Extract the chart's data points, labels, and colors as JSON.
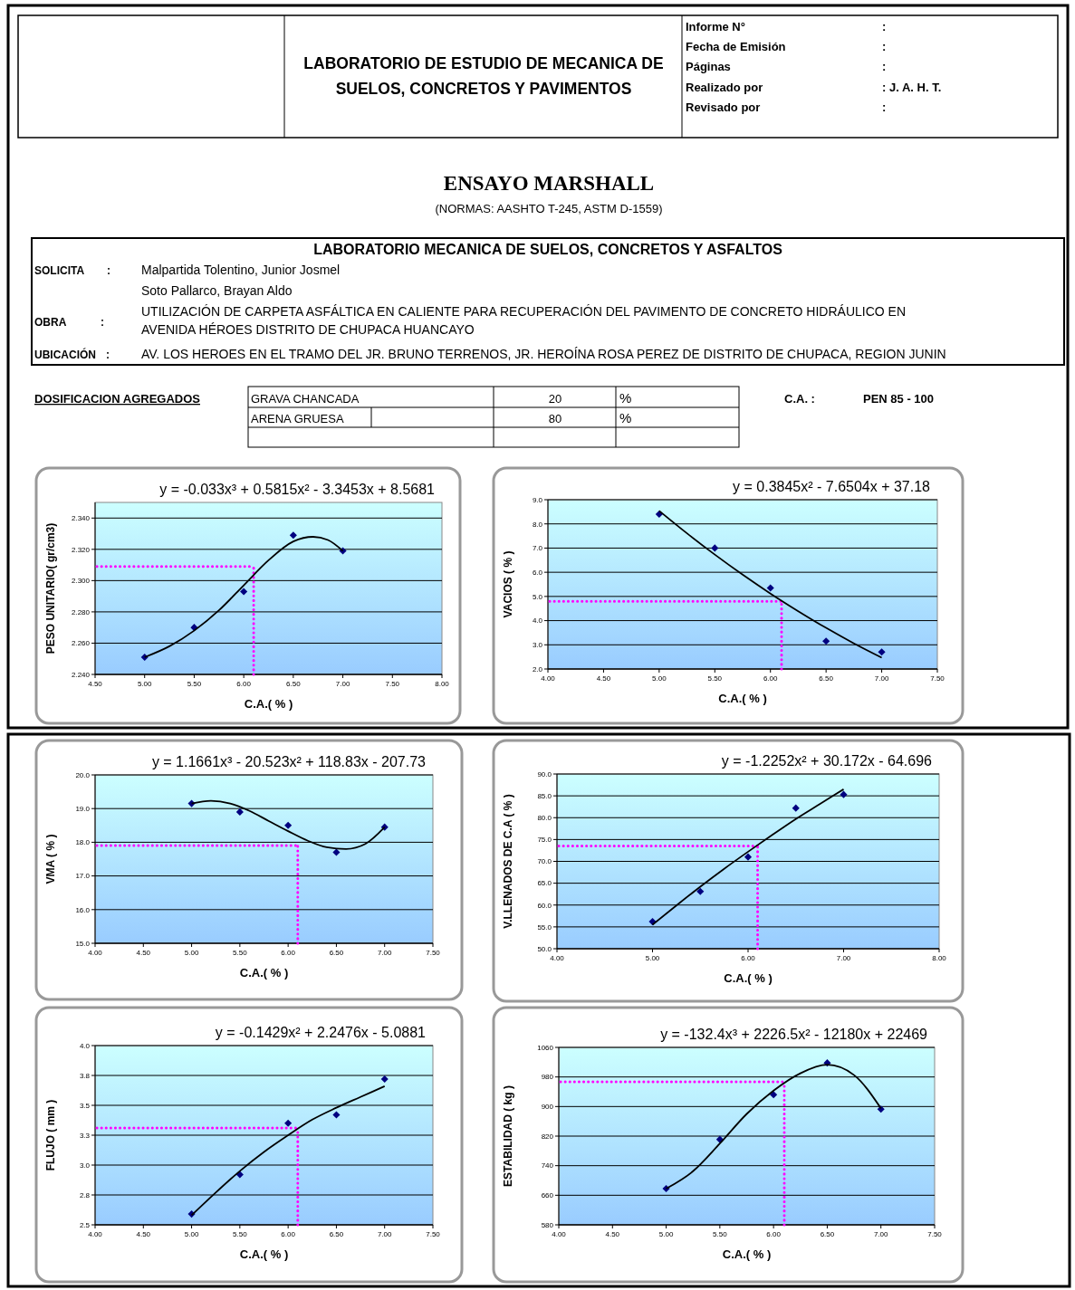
{
  "chart_data": [
    {
      "type": "other",
      "title": "ENSAYO MARSHALL",
      "subtitle": "(NORMAS: AASHTO T-245, ASTM D-1559)",
      "annotations": [
        "LABORATORIO DE ESTUDIO DE MECANICA DE",
        "SUELOS, CONCRETOS Y PAVIMENTOS",
        "Informe N°",
        "Fecha de Emisión",
        "Páginas",
        "Realizado por",
        "Revisado por",
        ":",
        ":",
        ":",
        ": J. A. H. T.",
        ":",
        "LABORATORIO MECANICA DE SUELOS, CONCRETOS Y ASFALTOS",
        "SOLICITA",
        ":",
        "Malpartida Tolentino, Junior Josmel",
        "Soto Pallarco, Brayan Aldo",
        "OBRA",
        ":",
        "UTILIZACIÓN DE CARPETA ASFÁLTICA EN CALIENTE PARA RECUPERACIÓN DEL PAVIMENTO DE CONCRETO HIDRÁULICO EN",
        "AVENIDA HÉROES DISTRITO DE CHUPACA HUANCAYO",
        "UBICACIÓN",
        ":",
        "AV. LOS HEROES EN EL TRAMO DEL JR. BRUNO TERRENOS, JR. HEROÍNA ROSA PEREZ DE DISTRITO DE CHUPACA, REGION JUNIN",
        "DOSIFICACION AGREGADOS",
        "GRAVA CHANCADA",
        "20",
        "%",
        "ARENA GRUESA",
        "80",
        "%",
        "C.A. :",
        "PEN 85 - 100"
      ]
    },
    {
      "type": "scatter",
      "title": "y = -0.033x³ + 0.5815x² - 3.3453x + 8.5681",
      "xlabel": "C.A.( % )",
      "ylabel": "PESO UNITARIO( gr/cm3)",
      "x": [
        5,
        5.5,
        6,
        6.5,
        7
      ],
      "marker": "diamond",
      "grid": "y",
      "xlim": [
        4.5,
        8
      ],
      "xticks": [
        {
          "value": 4.5,
          "label": "4.50"
        },
        {
          "value": 5,
          "label": "5.00"
        },
        {
          "value": 5.5,
          "label": "5.50"
        },
        {
          "value": 6,
          "label": "6.00"
        },
        {
          "value": 6.5,
          "label": "6.50"
        },
        {
          "value": 7,
          "label": "7.00"
        },
        {
          "value": 7.5,
          "label": "7.50"
        },
        {
          "value": 8,
          "label": "8.00"
        }
      ],
      "ylim": [
        2.24,
        2.35
      ],
      "yticks": [
        {
          "value": 2.24,
          "label": "2.240"
        },
        {
          "value": 2.26,
          "label": "2.260"
        },
        {
          "value": 2.28,
          "label": "2.280"
        },
        {
          "value": 2.3,
          "label": "2.300"
        },
        {
          "value": 2.32,
          "label": "2.320"
        },
        {
          "value": 2.34,
          "label": "2.340"
        }
      ],
      "series": [
        {
          "type": "scatter",
          "color": "#000080",
          "values": [
            2.251,
            2.27,
            2.293,
            2.329,
            2.319
          ]
        },
        {
          "type": "line",
          "color": "#000000",
          "x": [
            5,
            5.25,
            5.5,
            5.75,
            6,
            6.25,
            6.5,
            6.7,
            6.85,
            7
          ],
          "marker": "none",
          "values": [
            2.251,
            2.258,
            2.268,
            2.281,
            2.297,
            2.313,
            2.325,
            2.328,
            2.326,
            2.319
          ]
        }
      ],
      "ref_lines": [
        {
          "axis": "x",
          "value": 6.1,
          "color": "#ff00ff",
          "line_style": "dotted"
        },
        {
          "axis": "y",
          "value": 2.309,
          "color": "#ff00ff",
          "line_style": "dotted"
        }
      ]
    },
    {
      "type": "scatter",
      "title": "y = 0.3845x² - 7.6504x + 37.18",
      "xlabel": "C.A.( % )",
      "ylabel": "VACIOS ( % )",
      "x": [
        5,
        5.5,
        6,
        6.5,
        7
      ],
      "marker": "diamond",
      "grid": "y",
      "xlim": [
        4,
        7.5
      ],
      "xticks": [
        {
          "value": 4,
          "label": "4.00"
        },
        {
          "value": 4.5,
          "label": "4.50"
        },
        {
          "value": 5,
          "label": "5.00"
        },
        {
          "value": 5.5,
          "label": "5.50"
        },
        {
          "value": 6,
          "label": "6.00"
        },
        {
          "value": 6.5,
          "label": "6.50"
        },
        {
          "value": 7,
          "label": "7.00"
        },
        {
          "value": 7.5,
          "label": "7.50"
        }
      ],
      "ylim": [
        2,
        9
      ],
      "yticks": [
        {
          "value": 2,
          "label": "2.0"
        },
        {
          "value": 3,
          "label": "3.0"
        },
        {
          "value": 4,
          "label": "4.0"
        },
        {
          "value": 5,
          "label": "5.0"
        },
        {
          "value": 6,
          "label": "6.0"
        },
        {
          "value": 7,
          "label": "7.0"
        },
        {
          "value": 8,
          "label": "8.0"
        },
        {
          "value": 9,
          "label": "9.0"
        }
      ],
      "series": [
        {
          "type": "scatter",
          "color": "#000080",
          "values": [
            8.4,
            7.0,
            5.35,
            3.15,
            2.7
          ]
        },
        {
          "type": "line",
          "color": "#000000",
          "x": [
            5,
            5.25,
            5.5,
            5.75,
            6,
            6.25,
            6.5,
            6.75,
            7
          ],
          "marker": "none",
          "values": [
            8.54,
            7.61,
            6.73,
            5.9,
            5.12,
            4.39,
            3.7,
            3.06,
            2.47
          ]
        }
      ],
      "ref_lines": [
        {
          "axis": "x",
          "value": 6.1,
          "color": "#ff00ff",
          "line_style": "dotted"
        },
        {
          "axis": "y",
          "value": 4.8,
          "color": "#ff00ff",
          "line_style": "dotted"
        }
      ]
    },
    {
      "type": "scatter",
      "title": "y = 1.1661x³ - 20.523x² + 118.83x - 207.73",
      "xlabel": "C.A.( % )",
      "ylabel": "VMA ( % )",
      "x": [
        5,
        5.5,
        6,
        6.5,
        7
      ],
      "marker": "diamond",
      "grid": "y",
      "xlim": [
        4,
        7.5
      ],
      "xticks": [
        {
          "value": 4,
          "label": "4.00"
        },
        {
          "value": 4.5,
          "label": "4.50"
        },
        {
          "value": 5,
          "label": "5.00"
        },
        {
          "value": 5.5,
          "label": "5.50"
        },
        {
          "value": 6,
          "label": "6.00"
        },
        {
          "value": 6.5,
          "label": "6.50"
        },
        {
          "value": 7,
          "label": "7.00"
        },
        {
          "value": 7.5,
          "label": "7.50"
        }
      ],
      "ylim": [
        15,
        20
      ],
      "yticks": [
        {
          "value": 15,
          "label": "15.0"
        },
        {
          "value": 16,
          "label": "16.0"
        },
        {
          "value": 17,
          "label": "17.0"
        },
        {
          "value": 18,
          "label": "18.0"
        },
        {
          "value": 19,
          "label": "19.0"
        },
        {
          "value": 20,
          "label": "20.0"
        }
      ],
      "series": [
        {
          "type": "scatter",
          "color": "#000080",
          "values": [
            19.15,
            18.9,
            18.5,
            17.7,
            18.45
          ]
        },
        {
          "type": "line",
          "color": "#000000",
          "x": [
            5,
            5.2,
            5.4,
            5.6,
            5.8,
            6,
            6.2,
            6.4,
            6.6,
            6.8,
            7
          ],
          "marker": "none",
          "values": [
            19.15,
            19.23,
            19.15,
            18.93,
            18.63,
            18.33,
            18.05,
            17.85,
            17.8,
            17.95,
            18.45
          ]
        }
      ],
      "ref_lines": [
        {
          "axis": "x",
          "value": 6.1,
          "color": "#ff00ff",
          "line_style": "dotted"
        },
        {
          "axis": "y",
          "value": 17.9,
          "color": "#ff00ff",
          "line_style": "dotted"
        }
      ]
    },
    {
      "type": "scatter",
      "title": "y = -1.2252x² + 30.172x - 64.696",
      "xlabel": "C.A.( % )",
      "ylabel": "V.LLENADOS DE C.A ( % )",
      "x": [
        5,
        5.5,
        6,
        6.5,
        7
      ],
      "marker": "diamond",
      "grid": "y",
      "xlim": [
        4,
        8
      ],
      "xticks": [
        {
          "value": 4,
          "label": "4.00"
        },
        {
          "value": 5,
          "label": "5.00"
        },
        {
          "value": 6,
          "label": "6.00"
        },
        {
          "value": 7,
          "label": "7.00"
        },
        {
          "value": 8,
          "label": "8.00"
        }
      ],
      "ylim": [
        50,
        90
      ],
      "yticks": [
        {
          "value": 50,
          "label": "50.0"
        },
        {
          "value": 55,
          "label": "55.0"
        },
        {
          "value": 60,
          "label": "60.0"
        },
        {
          "value": 65,
          "label": "65.0"
        },
        {
          "value": 70,
          "label": "70.0"
        },
        {
          "value": 75,
          "label": "75.0"
        },
        {
          "value": 80,
          "label": "80.0"
        },
        {
          "value": 85,
          "label": "85.0"
        },
        {
          "value": 90,
          "label": "90.0"
        }
      ],
      "series": [
        {
          "type": "scatter",
          "color": "#000080",
          "values": [
            56.2,
            63.1,
            71,
            82.2,
            85.3
          ]
        },
        {
          "type": "line",
          "color": "#000000",
          "x": [
            5,
            5.25,
            5.5,
            5.75,
            6,
            6.25,
            6.5,
            6.75,
            7
          ],
          "marker": "none",
          "values": [
            55.5,
            59.9,
            64.2,
            68.3,
            72.2,
            76.0,
            79.7,
            83.1,
            86.5
          ]
        }
      ],
      "ref_lines": [
        {
          "axis": "x",
          "value": 6.1,
          "color": "#ff00ff",
          "line_style": "dotted"
        },
        {
          "axis": "y",
          "value": 73.5,
          "color": "#ff00ff",
          "line_style": "dotted"
        }
      ]
    },
    {
      "type": "scatter",
      "title": "y = -0.1429x² + 2.2476x - 5.0881",
      "xlabel": "C.A.( % )",
      "ylabel": "FLUJO ( mm )",
      "x": [
        5,
        5.5,
        6,
        6.5,
        7
      ],
      "marker": "diamond",
      "grid": "y",
      "xlim": [
        4,
        7.5
      ],
      "xticks": [
        {
          "value": 4,
          "label": "4.00"
        },
        {
          "value": 4.5,
          "label": "4.50"
        },
        {
          "value": 5,
          "label": "5.00"
        },
        {
          "value": 5.5,
          "label": "5.50"
        },
        {
          "value": 6,
          "label": "6.00"
        },
        {
          "value": 6.5,
          "label": "6.50"
        },
        {
          "value": 7,
          "label": "7.00"
        },
        {
          "value": 7.5,
          "label": "7.50"
        }
      ],
      "ylim": [
        2.5,
        4
      ],
      "yticks": [
        {
          "value": 2.5,
          "label": "2.5"
        },
        {
          "value": 2.75,
          "label": "2.8"
        },
        {
          "value": 3,
          "label": "3.0"
        },
        {
          "value": 3.25,
          "label": "3.3"
        },
        {
          "value": 3.5,
          "label": "3.5"
        },
        {
          "value": 3.75,
          "label": "3.8"
        },
        {
          "value": 4,
          "label": "4.0"
        }
      ],
      "series": [
        {
          "type": "scatter",
          "color": "#000080",
          "values": [
            2.59,
            2.92,
            3.35,
            3.42,
            3.72
          ]
        },
        {
          "type": "line",
          "color": "#000000",
          "x": [
            5,
            5.25,
            5.5,
            5.75,
            6,
            6.25,
            6.5,
            6.75,
            7
          ],
          "marker": "none",
          "values": [
            2.58,
            2.77,
            2.95,
            3.11,
            3.25,
            3.38,
            3.48,
            3.57,
            3.66
          ]
        }
      ],
      "ref_lines": [
        {
          "axis": "x",
          "value": 6.1,
          "color": "#ff00ff",
          "line_style": "dotted"
        },
        {
          "axis": "y",
          "value": 3.31,
          "color": "#ff00ff",
          "line_style": "dotted"
        }
      ]
    },
    {
      "type": "scatter",
      "title": "y = -132.4x³ + 2226.5x² - 12180x + 22469",
      "xlabel": "C.A.( % )",
      "ylabel": "ESTABILIDAD ( kg )",
      "x": [
        5,
        5.5,
        6,
        6.5,
        7
      ],
      "marker": "diamond",
      "grid": "y",
      "xlim": [
        4,
        7.5
      ],
      "xticks": [
        {
          "value": 4,
          "label": "4.00"
        },
        {
          "value": 4.5,
          "label": "4.50"
        },
        {
          "value": 5,
          "label": "5.00"
        },
        {
          "value": 5.5,
          "label": "5.50"
        },
        {
          "value": 6,
          "label": "6.00"
        },
        {
          "value": 6.5,
          "label": "6.50"
        },
        {
          "value": 7,
          "label": "7.00"
        },
        {
          "value": 7.5,
          "label": "7.50"
        }
      ],
      "ylim": [
        580,
        1060
      ],
      "yticks": [
        580,
        660,
        740,
        820,
        900,
        980,
        1060
      ],
      "series": [
        {
          "type": "scatter",
          "color": "#000080",
          "values": [
            678,
            811,
            932,
            1018,
            893
          ]
        },
        {
          "type": "line",
          "color": "#000000",
          "x": [
            5,
            5.25,
            5.5,
            5.75,
            6,
            6.25,
            6.5,
            6.75,
            7
          ],
          "marker": "none",
          "values": [
            678,
            725,
            800,
            880,
            943,
            990,
            1013,
            985,
            895
          ]
        }
      ],
      "ref_lines": [
        {
          "axis": "x",
          "value": 6.1,
          "color": "#ff00ff",
          "line_style": "dotted"
        },
        {
          "axis": "y",
          "value": 967,
          "color": "#ff00ff",
          "line_style": "dotted"
        }
      ]
    }
  ]
}
